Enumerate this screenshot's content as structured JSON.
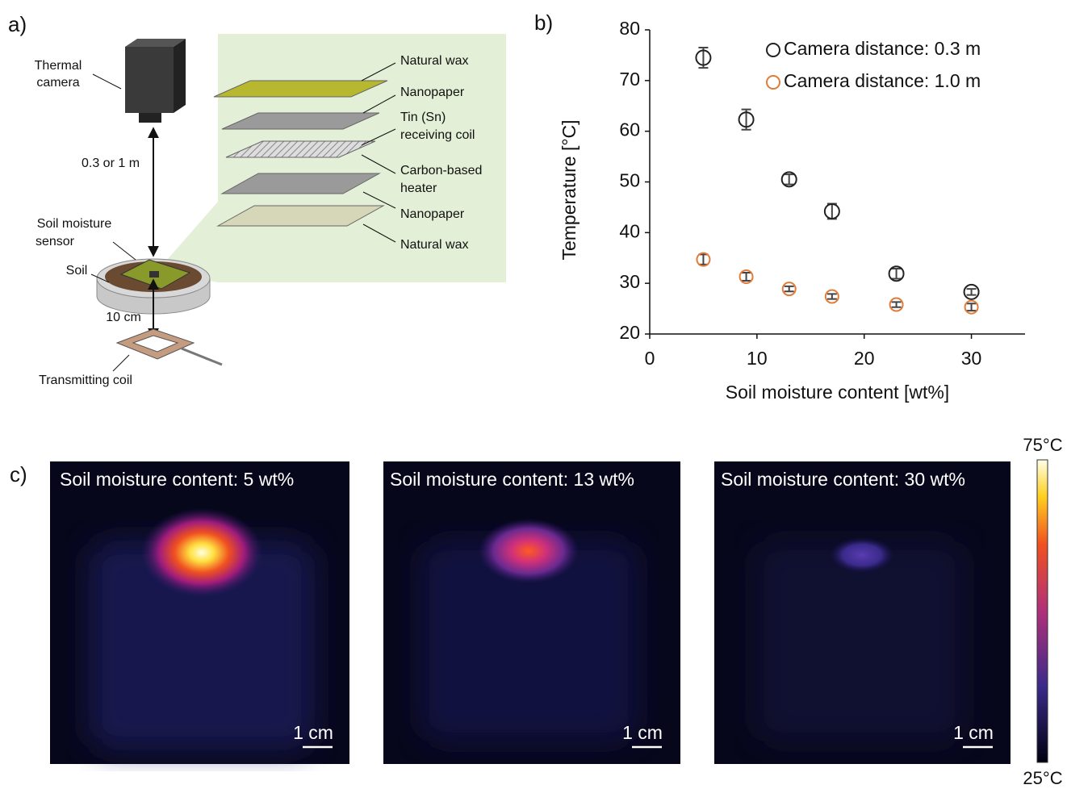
{
  "panel_a": {
    "label": "a)",
    "camera": [
      "Thermal",
      "camera"
    ],
    "distance": "0.3 or 1 m",
    "sensor": [
      "Soil moisture",
      "sensor"
    ],
    "soil": "Soil",
    "gap": "10 cm",
    "coil": "Transmitting coil",
    "layers": [
      [
        "Natural wax"
      ],
      [
        "Nanopaper"
      ],
      [
        "Tin (Sn)",
        "receiving coil"
      ],
      [
        "Carbon-based",
        "heater"
      ],
      [
        "Nanopaper"
      ],
      [
        "Natural wax"
      ]
    ]
  },
  "chart_data": {
    "type": "scatter",
    "panel_label": "b)",
    "xlabel": "Soil moisture content [wt%]",
    "ylabel": "Temperature  [°C]",
    "xlim": [
      0,
      35
    ],
    "ylim": [
      20,
      80
    ],
    "xticks": [
      0,
      10,
      20,
      30
    ],
    "yticks": [
      20,
      30,
      40,
      50,
      60,
      70,
      80
    ],
    "legend": "upper right",
    "series": [
      {
        "name": "Camera distance: 0.3 m",
        "color": "#222222",
        "x": [
          5,
          9,
          13,
          17,
          23,
          30
        ],
        "values": [
          74.5,
          62.3,
          50.5,
          44.2,
          31.9,
          28.3
        ],
        "errors": [
          2,
          2,
          1,
          1.5,
          1,
          0.6
        ]
      },
      {
        "name": "Camera distance: 1.0 m",
        "color": "#e07b39",
        "x": [
          5,
          9,
          13,
          17,
          23,
          30
        ],
        "values": [
          34.7,
          31.3,
          28.9,
          27.4,
          25.8,
          25.3
        ],
        "errors": [
          1,
          0.8,
          0.5,
          0.5,
          0.5,
          0.7
        ]
      }
    ]
  },
  "panel_c": {
    "label": "c)",
    "images": [
      {
        "title": "Soil moisture content: 5 wt%",
        "scale": "1 cm"
      },
      {
        "title": "Soil moisture content: 13 wt%",
        "scale": "1 cm"
      },
      {
        "title": "Soil moisture content: 30 wt%",
        "scale": "1 cm"
      }
    ],
    "colorbar": {
      "max": "75°C",
      "min": "25°C"
    }
  }
}
